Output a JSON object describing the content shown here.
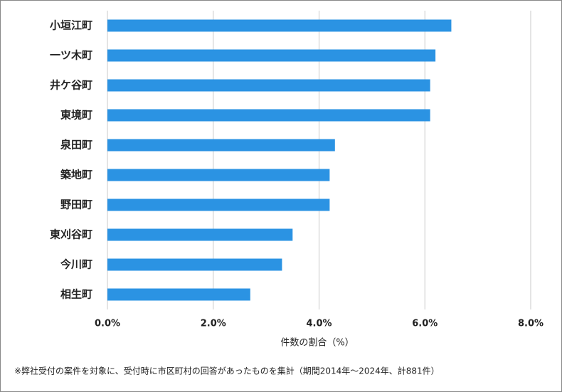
{
  "chart_data": {
    "type": "bar",
    "orientation": "horizontal",
    "categories": [
      "小垣江町",
      "一ツ木町",
      "井ケ谷町",
      "東境町",
      "泉田町",
      "築地町",
      "野田町",
      "東刈谷町",
      "今川町",
      "相生町"
    ],
    "values": [
      6.5,
      6.2,
      6.1,
      6.1,
      4.3,
      4.2,
      4.2,
      3.5,
      3.3,
      2.7
    ],
    "color": "#2b93e3",
    "xlim": [
      0,
      8
    ],
    "xticks": [
      {
        "value": 0,
        "label": "0.0%"
      },
      {
        "value": 2,
        "label": "2.0%"
      },
      {
        "value": 4,
        "label": "4.0%"
      },
      {
        "value": 6,
        "label": "6.0%"
      },
      {
        "value": 8,
        "label": "8.0%"
      }
    ],
    "grid": true,
    "xlabel": "件数の割合（%）",
    "footnote": "※弊社受付の案件を対象に、受付時に市区町村の回答があったものを集計（期間2014年～2024年、計881件）"
  }
}
